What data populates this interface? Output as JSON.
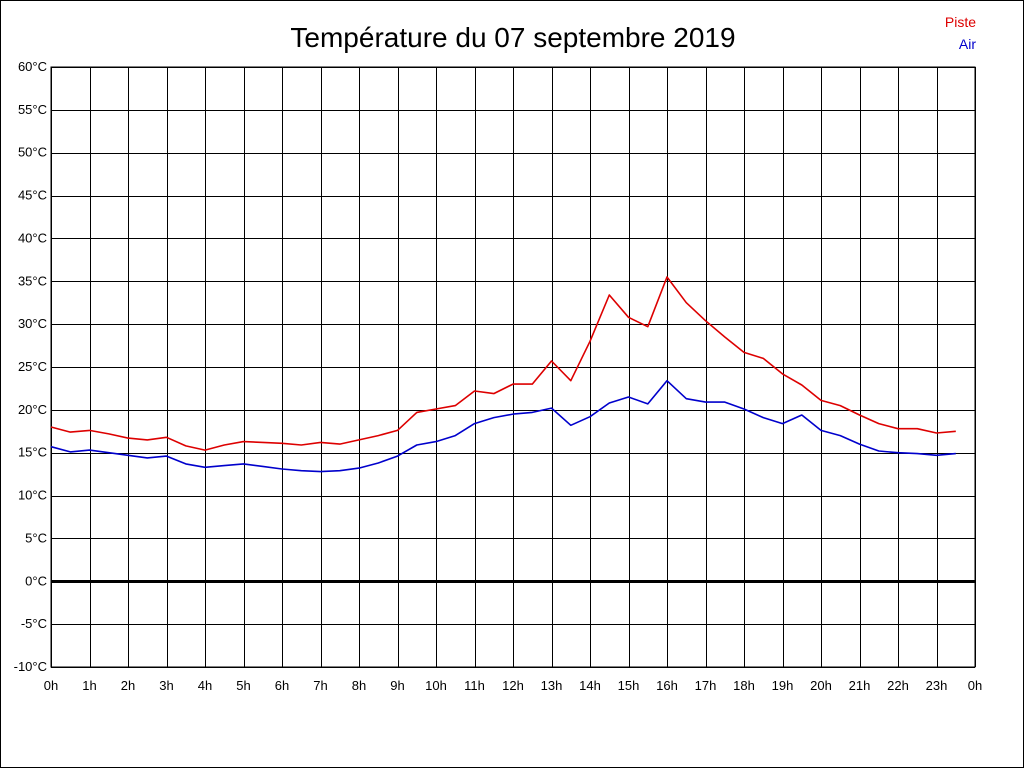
{
  "chart_data": {
    "type": "line",
    "title": "Température du 07 septembre 2019",
    "xlabel": "",
    "ylabel": "",
    "ylim": [
      -10,
      60
    ],
    "y_step": 5,
    "y_unit": "°C",
    "y_ticks": [
      "60°C",
      "55°C",
      "50°C",
      "45°C",
      "40°C",
      "35°C",
      "30°C",
      "25°C",
      "20°C",
      "15°C",
      "10°C",
      "5°C",
      "0°C",
      "-5°C",
      "-10°C"
    ],
    "x_ticks": [
      "0h",
      "1h",
      "2h",
      "3h",
      "4h",
      "5h",
      "6h",
      "7h",
      "8h",
      "9h",
      "10h",
      "11h",
      "12h",
      "13h",
      "14h",
      "15h",
      "16h",
      "17h",
      "18h",
      "19h",
      "20h",
      "21h",
      "22h",
      "23h",
      "0h"
    ],
    "grid": true,
    "legend": "top-right",
    "x": [
      0,
      0.5,
      1,
      1.5,
      2,
      2.5,
      3,
      3.5,
      4,
      4.5,
      5,
      5.5,
      6,
      6.5,
      7,
      7.5,
      8,
      8.5,
      9,
      9.5,
      10,
      10.5,
      11,
      11.5,
      12,
      12.5,
      13,
      13.5,
      14,
      14.5,
      15,
      15.5,
      16,
      16.5,
      17,
      17.5,
      18,
      18.5,
      19,
      19.5,
      20,
      20.5,
      21,
      21.5,
      22,
      22.5,
      23,
      23.5
    ],
    "series": [
      {
        "name": "Piste",
        "color": "#dd0000",
        "values": [
          18.0,
          17.4,
          17.6,
          17.2,
          16.7,
          16.5,
          16.8,
          15.8,
          15.3,
          15.9,
          16.3,
          16.2,
          16.1,
          15.9,
          16.2,
          16.0,
          16.5,
          17.0,
          17.6,
          19.7,
          20.1,
          20.5,
          22.2,
          21.9,
          23.0,
          23.0,
          25.7,
          23.4,
          28.0,
          33.4,
          30.8,
          29.7,
          35.5,
          32.5,
          30.4,
          28.5,
          26.7,
          26.0,
          24.2,
          22.9,
          21.1,
          20.5,
          19.4,
          18.4,
          17.8,
          17.8,
          17.3,
          17.5
        ]
      },
      {
        "name": "Air",
        "color": "#0000cc",
        "values": [
          15.7,
          15.1,
          15.3,
          15.0,
          14.7,
          14.4,
          14.6,
          13.7,
          13.3,
          13.5,
          13.7,
          13.4,
          13.1,
          12.9,
          12.8,
          12.9,
          13.2,
          13.8,
          14.6,
          15.9,
          16.3,
          17.0,
          18.4,
          19.1,
          19.5,
          19.7,
          20.2,
          18.2,
          19.2,
          20.8,
          21.5,
          20.7,
          23.4,
          21.3,
          20.9,
          20.9,
          20.1,
          19.1,
          18.4,
          19.4,
          17.6,
          17.0,
          16.0,
          15.2,
          15.0,
          14.9,
          14.7,
          14.9
        ]
      }
    ]
  }
}
